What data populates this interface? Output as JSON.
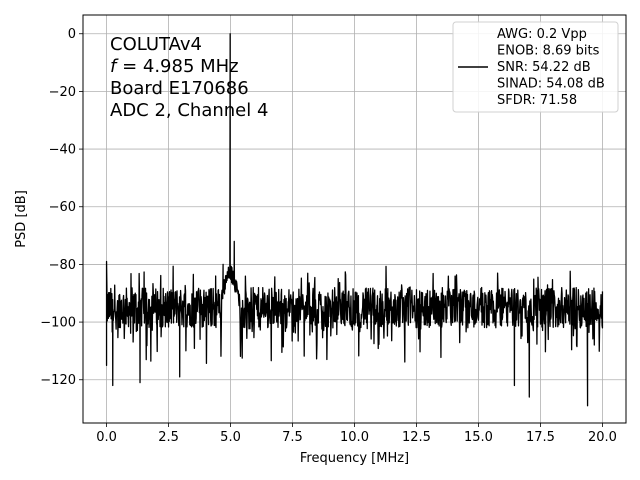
{
  "chart_data": {
    "type": "line",
    "xlabel": "Frequency [MHz]",
    "ylabel": "PSD [dB]",
    "xlim": [
      -0.95,
      20.95
    ],
    "ylim": [
      -135,
      6.5
    ],
    "xticks": [
      0.0,
      2.5,
      5.0,
      7.5,
      10.0,
      12.5,
      15.0,
      17.5,
      20.0
    ],
    "xtick_labels": [
      "0.0",
      "2.5",
      "5.0",
      "7.5",
      "10.0",
      "12.5",
      "15.0",
      "17.5",
      "20.0"
    ],
    "yticks": [
      0,
      -20,
      -40,
      -60,
      -80,
      -100,
      -120
    ],
    "ytick_labels": [
      "0",
      "−20",
      "−40",
      "−60",
      "−80",
      "−100",
      "−120"
    ],
    "grid": true,
    "line_color": "#000000",
    "annotation": {
      "lines": [
        "COLUTAv4",
        "f = 4.985 MHz",
        "Board E170686",
        "ADC 2, Channel 4"
      ],
      "italic_prefix": "f"
    },
    "legend": {
      "location": "top-right",
      "entries": [
        "AWG: 0.2 Vpp",
        "ENOB: 8.69 bits",
        "SNR: 54.22 dB",
        "SINAD: 54.08 dB",
        "SFDR: 71.58"
      ]
    },
    "series": [
      {
        "x_range": [
          0.0,
          20.0
        ],
        "noise_floor_approx_db": -95,
        "peak": {
          "x": 4.985,
          "y": 0
        },
        "features": [
          {
            "x": 0.0,
            "y": -79
          },
          {
            "x": 0.0,
            "y": -115
          },
          {
            "x": 0.25,
            "y": -122
          },
          {
            "x": 1.35,
            "y": -121
          },
          {
            "x": 2.95,
            "y": -119
          },
          {
            "x": 4.7,
            "y": -80
          },
          {
            "x": 4.985,
            "y": 0
          },
          {
            "x": 5.15,
            "y": -72
          },
          {
            "x": 16.45,
            "y": -122
          },
          {
            "x": 17.05,
            "y": -126
          },
          {
            "x": 19.4,
            "y": -129
          },
          {
            "x": 20.0,
            "y": -102
          }
        ]
      }
    ]
  }
}
